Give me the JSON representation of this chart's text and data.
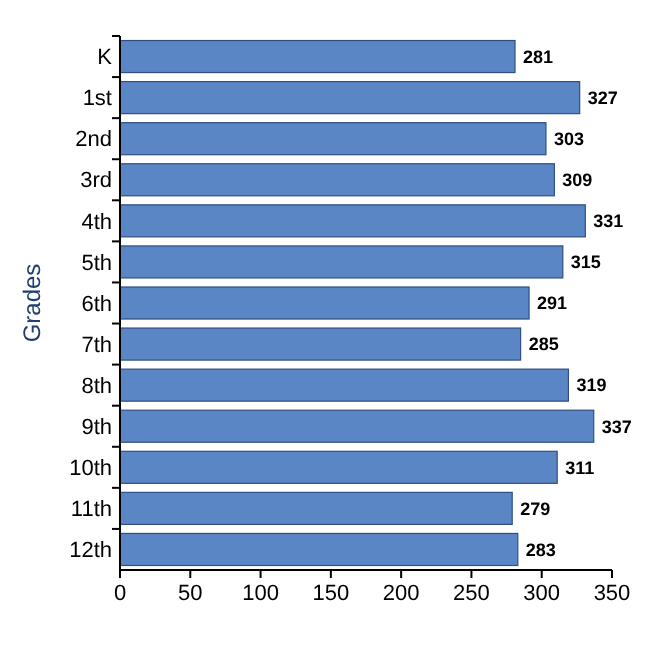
{
  "chart_data": {
    "type": "bar",
    "orientation": "horizontal",
    "ylabel": "Grades",
    "categories": [
      "K",
      "1st",
      "2nd",
      "3rd",
      "4th",
      "5th",
      "6th",
      "7th",
      "8th",
      "9th",
      "10th",
      "11th",
      "12th"
    ],
    "values": [
      281,
      327,
      303,
      309,
      331,
      315,
      291,
      285,
      319,
      337,
      311,
      279,
      283
    ],
    "color": "#5a86c5",
    "xlim": [
      0,
      350
    ],
    "xticks": [
      0,
      50,
      100,
      150,
      200,
      250,
      300,
      350
    ],
    "data_labels": true
  }
}
